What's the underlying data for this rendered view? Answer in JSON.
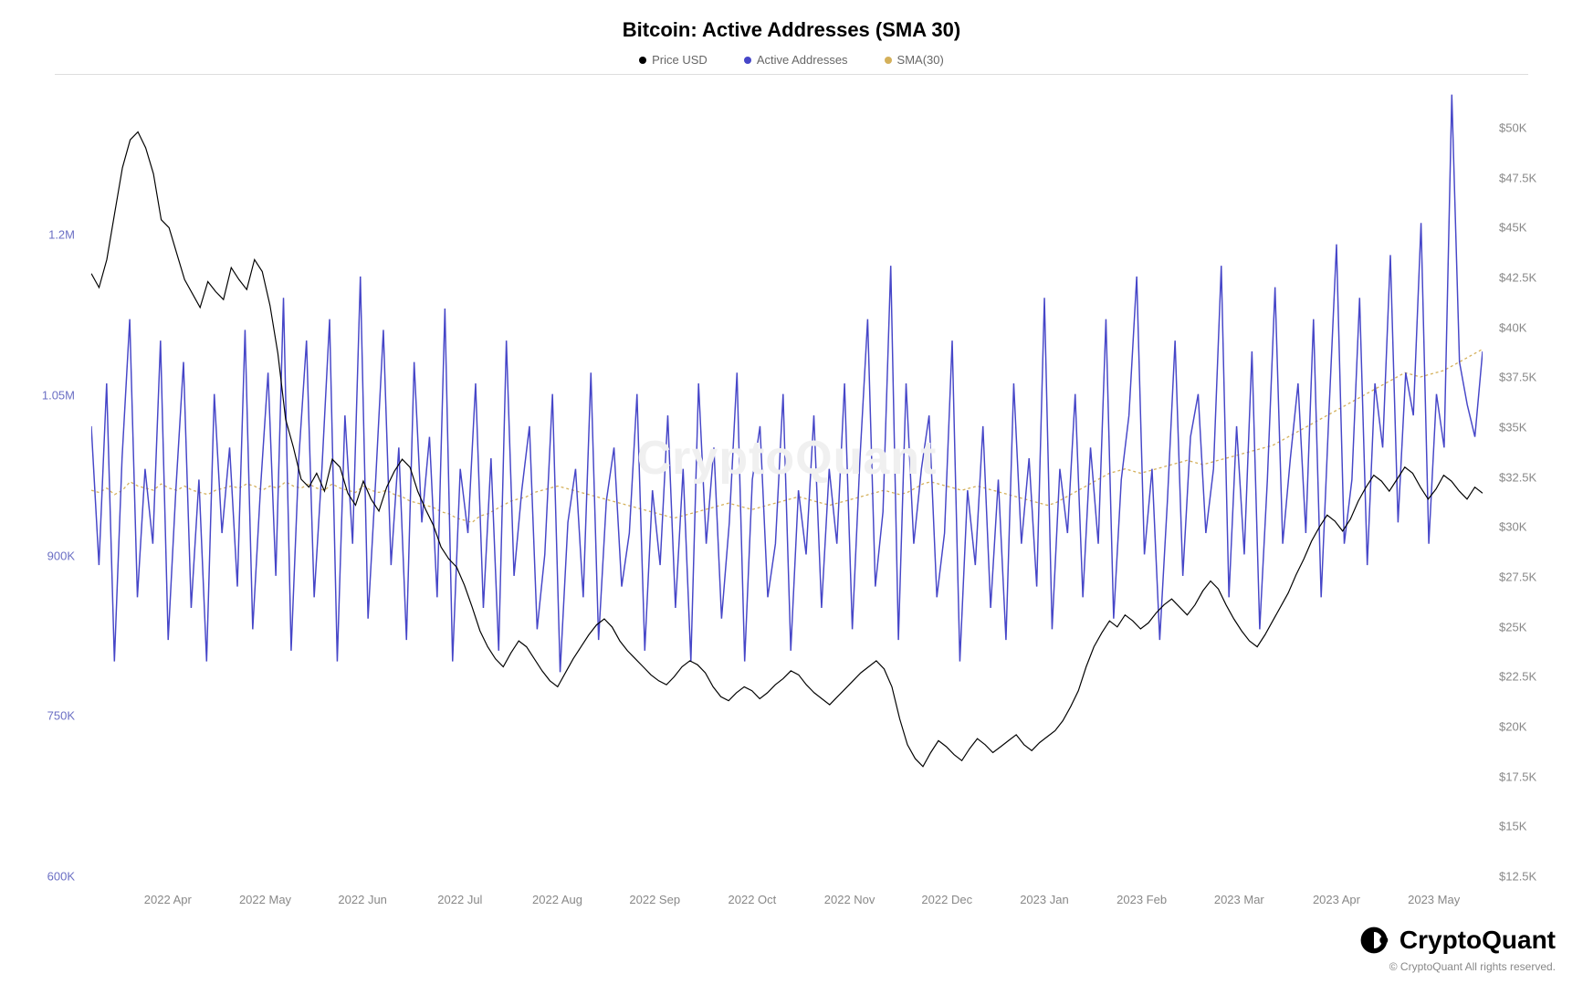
{
  "chart": {
    "type": "line",
    "title": "Bitcoin: Active Addresses (SMA 30)",
    "title_fontsize": 22,
    "background_color": "#ffffff",
    "watermark": "CryptoQuant",
    "watermark_color": "#f0f0f0",
    "legend": [
      {
        "label": "Price USD",
        "color": "#000000"
      },
      {
        "label": "Active Addresses",
        "color": "#4646c8"
      },
      {
        "label": "SMA(30)",
        "color": "#d4b05a"
      }
    ],
    "x_axis": {
      "labels": [
        "2022 Apr",
        "2022 May",
        "2022 Jun",
        "2022 Jul",
        "2022 Aug",
        "2022 Sep",
        "2022 Oct",
        "2022 Nov",
        "2022 Dec",
        "2023 Jan",
        "2023 Feb",
        "2023 Mar",
        "2023 Apr",
        "2023 May"
      ],
      "positions_pct": [
        5.5,
        12.5,
        19.5,
        26.5,
        33.5,
        40.5,
        47.5,
        54.5,
        61.5,
        68.5,
        75.5,
        82.5,
        89.5,
        96.5
      ],
      "label_fontsize": 13,
      "label_color": "#888888"
    },
    "y_axis_left": {
      "label": "Active Addresses",
      "ticks": [
        "600K",
        "750K",
        "900K",
        "1.05M",
        "1.2M"
      ],
      "tick_values": [
        600000,
        750000,
        900000,
        1050000,
        1200000
      ],
      "min": 600000,
      "max": 1300000,
      "color": "#6b6fc4",
      "label_fontsize": 13
    },
    "y_axis_right": {
      "label": "Price USD",
      "ticks": [
        "$12.5K",
        "$15K",
        "$17.5K",
        "$20K",
        "$22.5K",
        "$25K",
        "$27.5K",
        "$30K",
        "$32.5K",
        "$35K",
        "$37.5K",
        "$40K",
        "$42.5K",
        "$45K",
        "$47.5K",
        "$50K"
      ],
      "tick_values": [
        12500,
        15000,
        17500,
        20000,
        22500,
        25000,
        27500,
        30000,
        32500,
        35000,
        37500,
        40000,
        42500,
        45000,
        47500,
        50000
      ],
      "min": 12500,
      "max": 50000,
      "color": "#888888",
      "label_fontsize": 13
    },
    "series": {
      "price_usd": {
        "color": "#000000",
        "line_width": 1.2,
        "values": [
          40500,
          39800,
          41200,
          43500,
          45800,
          47200,
          47600,
          46800,
          45500,
          43200,
          42800,
          41500,
          40200,
          39500,
          38800,
          40100,
          39600,
          39200,
          40800,
          40200,
          39700,
          41200,
          40600,
          38900,
          36500,
          33200,
          31800,
          30200,
          29800,
          30500,
          29600,
          31200,
          30800,
          29500,
          28900,
          30100,
          29200,
          28600,
          29800,
          30600,
          31200,
          30800,
          29600,
          28700,
          27900,
          26800,
          26200,
          25800,
          24900,
          23800,
          22600,
          21800,
          21200,
          20800,
          21500,
          22100,
          21800,
          21200,
          20600,
          20100,
          19800,
          20500,
          21200,
          21800,
          22400,
          22900,
          23200,
          22800,
          22100,
          21600,
          21200,
          20800,
          20400,
          20100,
          19900,
          20300,
          20800,
          21100,
          20900,
          20500,
          19800,
          19300,
          19100,
          19500,
          19800,
          19600,
          19200,
          19500,
          19900,
          20200,
          20600,
          20400,
          19900,
          19500,
          19200,
          18900,
          19300,
          19700,
          20100,
          20500,
          20800,
          21100,
          20700,
          19800,
          18200,
          16900,
          16200,
          15800,
          16500,
          17100,
          16800,
          16400,
          16100,
          16700,
          17200,
          16900,
          16500,
          16800,
          17100,
          17400,
          16900,
          16600,
          17000,
          17300,
          17600,
          18100,
          18800,
          19600,
          20800,
          21800,
          22500,
          23100,
          22800,
          23400,
          23100,
          22700,
          23000,
          23500,
          23900,
          24200,
          23800,
          23400,
          23900,
          24600,
          25100,
          24700,
          23900,
          23200,
          22600,
          22100,
          21800,
          22400,
          23100,
          23800,
          24500,
          25400,
          26200,
          27100,
          27800,
          28400,
          28100,
          27600,
          28200,
          29100,
          29800,
          30400,
          30100,
          29600,
          30200,
          30800,
          30500,
          29800,
          29200,
          29700,
          30400,
          30100,
          29600,
          29200,
          29800,
          29500
        ]
      },
      "active_addresses": {
        "color": "#4646c8",
        "line_width": 1.5,
        "values": [
          980000,
          850000,
          1020000,
          760000,
          950000,
          1080000,
          820000,
          940000,
          870000,
          1060000,
          780000,
          920000,
          1040000,
          810000,
          930000,
          760000,
          1010000,
          880000,
          960000,
          830000,
          1070000,
          790000,
          920000,
          1030000,
          840000,
          1100000,
          770000,
          950000,
          1060000,
          820000,
          940000,
          1080000,
          760000,
          990000,
          870000,
          1120000,
          800000,
          930000,
          1070000,
          850000,
          960000,
          780000,
          1040000,
          890000,
          970000,
          820000,
          1090000,
          760000,
          940000,
          880000,
          1020000,
          810000,
          950000,
          770000,
          1060000,
          840000,
          920000,
          980000,
          790000,
          860000,
          1010000,
          750000,
          890000,
          940000,
          820000,
          1030000,
          780000,
          910000,
          960000,
          830000,
          880000,
          1010000,
          770000,
          920000,
          850000,
          990000,
          810000,
          940000,
          760000,
          1020000,
          870000,
          960000,
          800000,
          890000,
          1030000,
          760000,
          930000,
          980000,
          820000,
          870000,
          1010000,
          770000,
          920000,
          860000,
          990000,
          810000,
          940000,
          870000,
          1020000,
          790000,
          950000,
          1080000,
          830000,
          900000,
          1130000,
          780000,
          1020000,
          870000,
          940000,
          990000,
          820000,
          880000,
          1060000,
          760000,
          920000,
          850000,
          980000,
          810000,
          930000,
          780000,
          1020000,
          870000,
          950000,
          830000,
          1100000,
          790000,
          940000,
          880000,
          1010000,
          820000,
          960000,
          870000,
          1080000,
          800000,
          930000,
          990000,
          1120000,
          860000,
          940000,
          780000,
          910000,
          1060000,
          840000,
          970000,
          1010000,
          880000,
          940000,
          1130000,
          820000,
          980000,
          860000,
          1050000,
          790000,
          930000,
          1110000,
          870000,
          950000,
          1020000,
          880000,
          1080000,
          820000,
          990000,
          1150000,
          870000,
          930000,
          1100000,
          850000,
          1020000,
          960000,
          1140000,
          890000,
          1030000,
          990000,
          1170000,
          870000,
          1010000,
          960000,
          1290000,
          1040000,
          1000000,
          970000,
          1050000
        ]
      },
      "sma30": {
        "color": "#d4b05a",
        "line_width": 1.3,
        "dash": "3,3",
        "values": [
          920000,
          918000,
          922000,
          916000,
          920000,
          928000,
          924000,
          922000,
          920000,
          926000,
          922000,
          920000,
          924000,
          920000,
          918000,
          916000,
          920000,
          922000,
          924000,
          922000,
          926000,
          924000,
          920000,
          924000,
          922000,
          928000,
          924000,
          922000,
          926000,
          922000,
          920000,
          926000,
          922000,
          920000,
          918000,
          924000,
          920000,
          918000,
          920000,
          916000,
          914000,
          910000,
          908000,
          906000,
          904000,
          900000,
          898000,
          894000,
          892000,
          890000,
          896000,
          898000,
          902000,
          906000,
          910000,
          912000,
          914000,
          918000,
          920000,
          922000,
          924000,
          922000,
          920000,
          918000,
          916000,
          914000,
          912000,
          910000,
          908000,
          906000,
          904000,
          902000,
          900000,
          898000,
          896000,
          894000,
          896000,
          898000,
          900000,
          902000,
          904000,
          906000,
          908000,
          906000,
          904000,
          902000,
          904000,
          906000,
          908000,
          910000,
          912000,
          914000,
          912000,
          910000,
          908000,
          906000,
          908000,
          910000,
          912000,
          914000,
          916000,
          918000,
          920000,
          918000,
          916000,
          918000,
          922000,
          926000,
          928000,
          926000,
          924000,
          922000,
          920000,
          922000,
          924000,
          922000,
          920000,
          918000,
          916000,
          914000,
          912000,
          910000,
          908000,
          906000,
          908000,
          912000,
          916000,
          920000,
          924000,
          928000,
          932000,
          936000,
          938000,
          940000,
          938000,
          936000,
          938000,
          940000,
          942000,
          944000,
          946000,
          948000,
          946000,
          944000,
          946000,
          948000,
          950000,
          952000,
          954000,
          956000,
          958000,
          960000,
          962000,
          966000,
          970000,
          974000,
          978000,
          982000,
          986000,
          990000,
          994000,
          998000,
          1002000,
          1006000,
          1010000,
          1014000,
          1018000,
          1022000,
          1026000,
          1030000,
          1028000,
          1026000,
          1028000,
          1030000,
          1032000,
          1036000,
          1040000,
          1044000,
          1048000,
          1052000
        ]
      }
    }
  },
  "footer": {
    "brand": "CryptoQuant",
    "copyright": "© CryptoQuant All rights reserved."
  }
}
